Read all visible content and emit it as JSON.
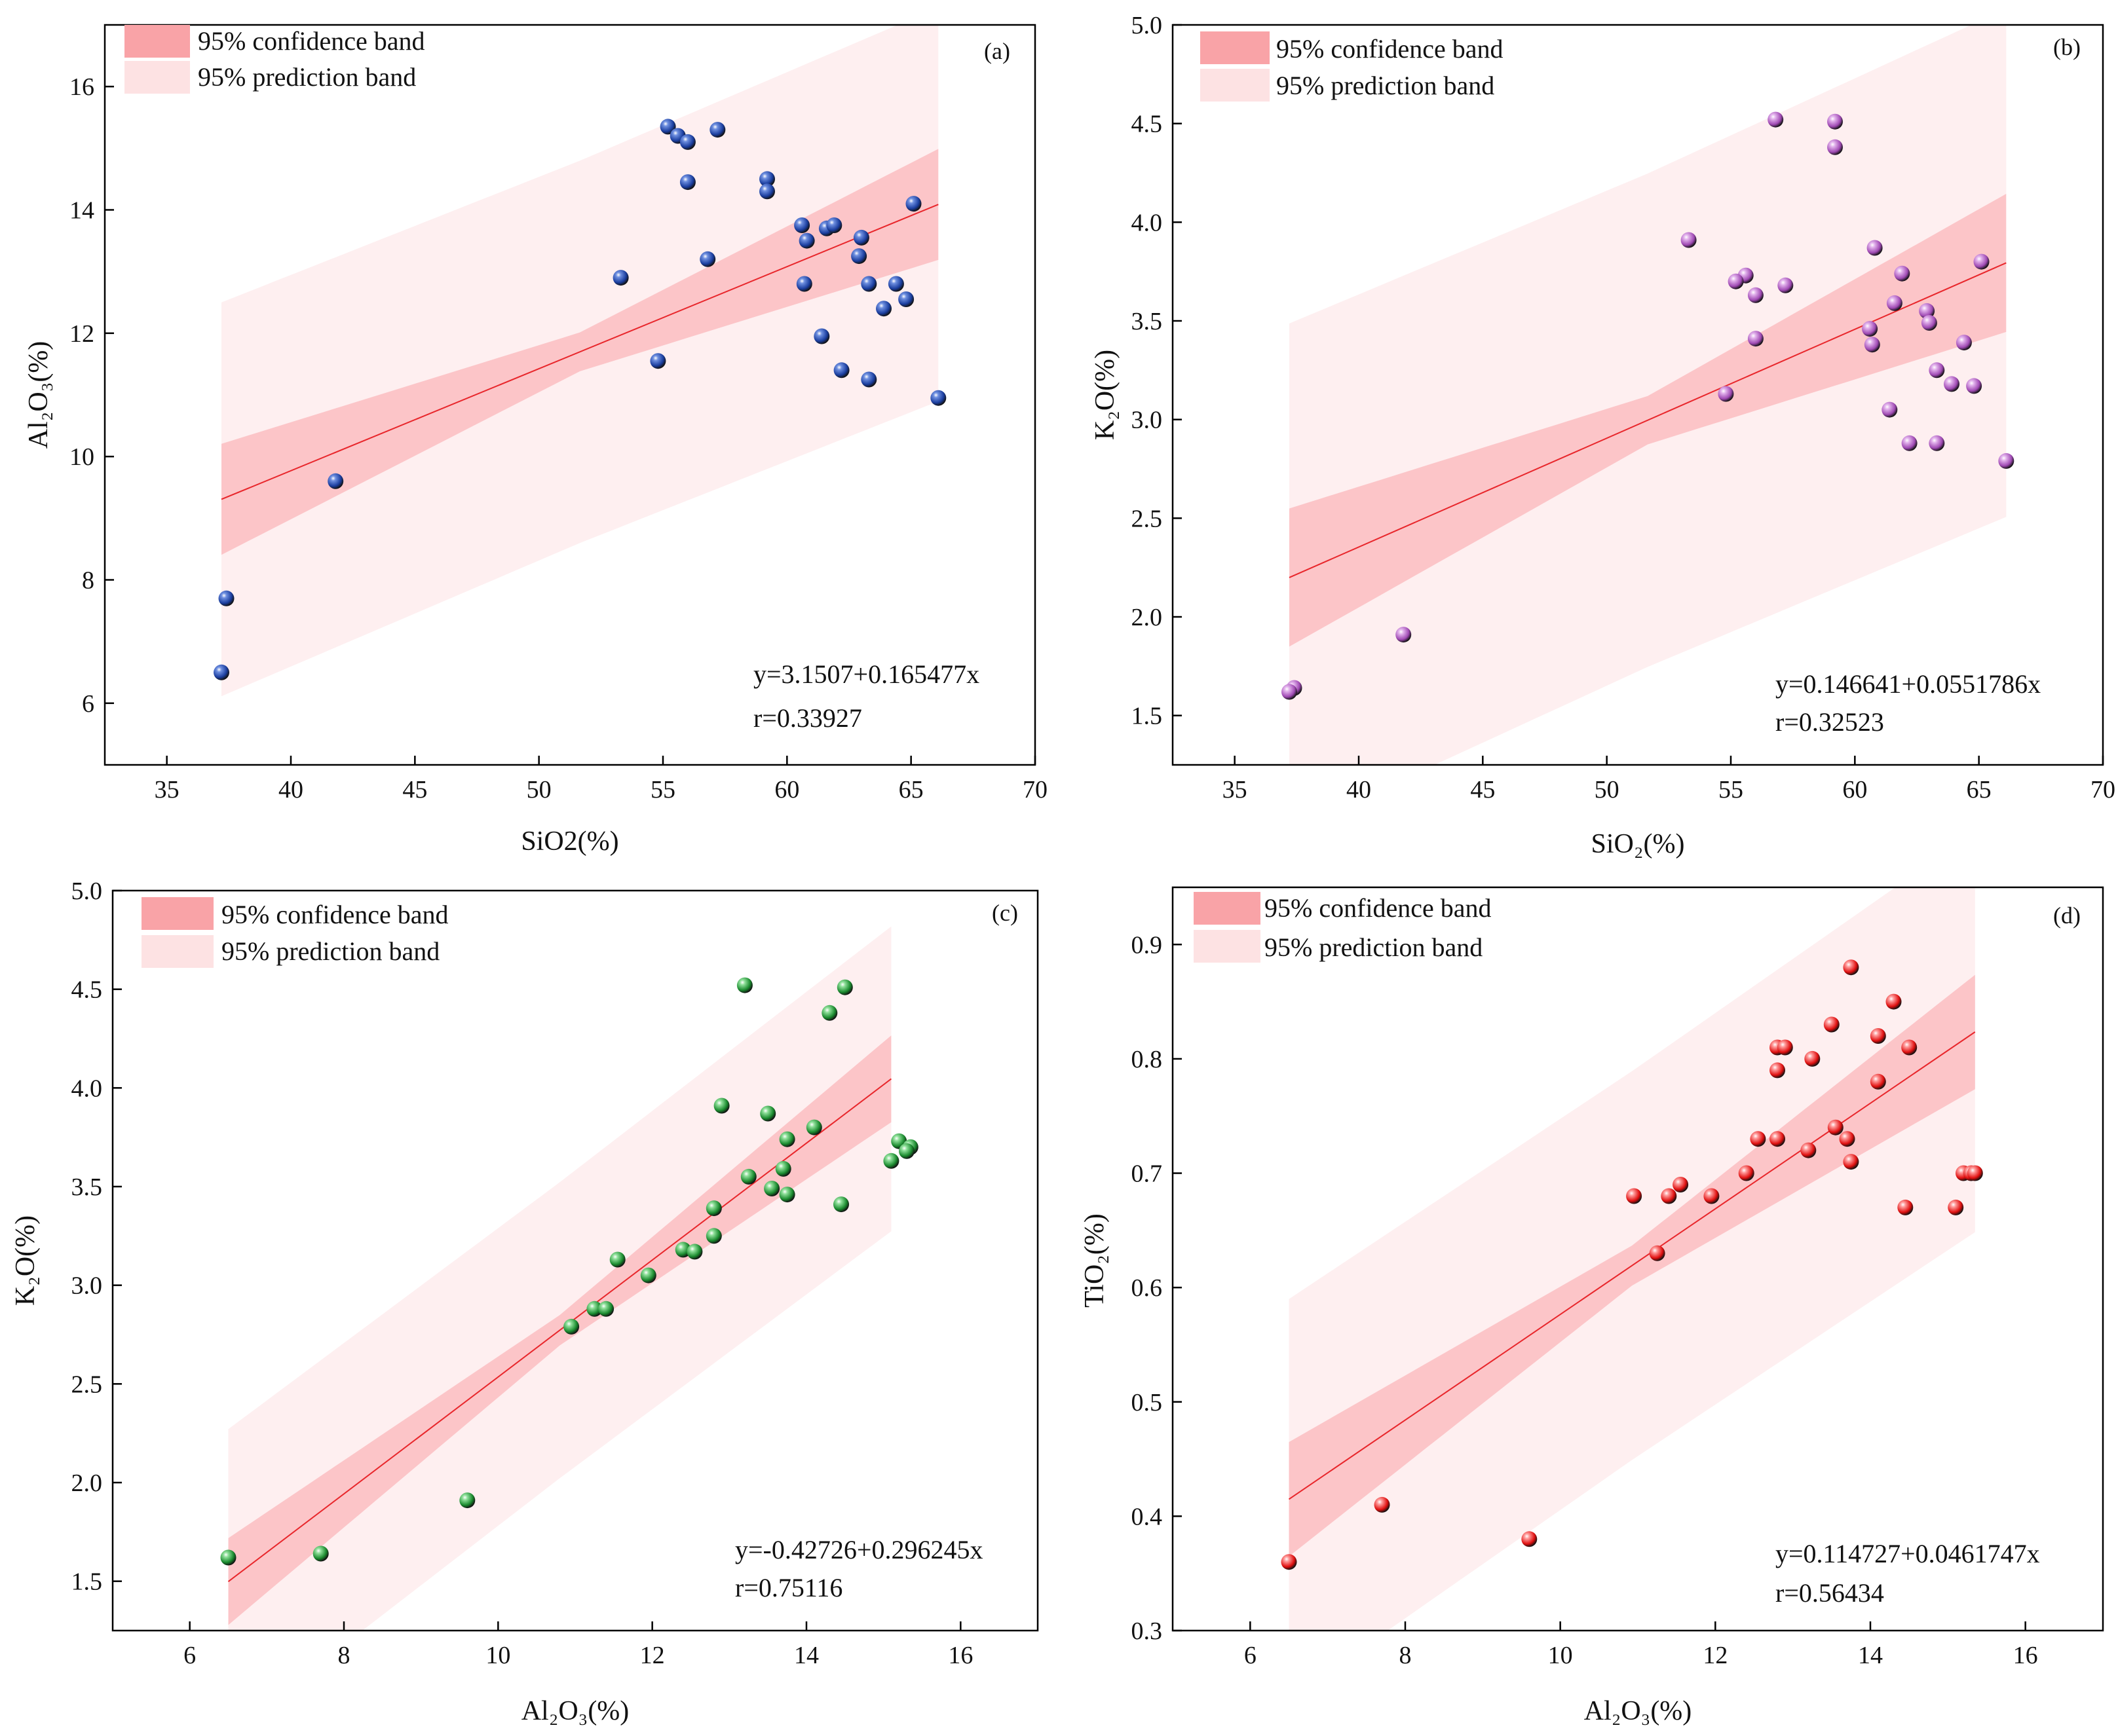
{
  "colors": {
    "confidence": "#f9a3a7",
    "prediction": "#fde2e3",
    "fit": "#e8262b",
    "axis": "#000000"
  },
  "chart_data": [
    {
      "type": "scatter",
      "panel": "(a)",
      "xlabel": "SiO2(%)",
      "ylabel": "Al₂O₃(%)",
      "xlim": [
        32.5,
        70
      ],
      "ylim": [
        5,
        17
      ],
      "xticks": [
        35,
        40,
        45,
        50,
        55,
        60,
        65,
        70
      ],
      "yticks": [
        6,
        8,
        10,
        12,
        14,
        16
      ],
      "ytick_format": "int",
      "x_range": [
        37.2,
        66.1
      ],
      "point_color": "#1a3d9e",
      "point_highlight": "#6e8fe0",
      "legend": [
        "95% confidence band",
        "95% prediction band"
      ],
      "equation": "y=3.1507+0.165477x",
      "r_text": "r=0.33927",
      "intercept": 3.1507,
      "slope": 0.165477,
      "conf_half": 0.9,
      "pred_half": 3.1,
      "points": [
        {
          "x": 55.2,
          "y": 15.35
        },
        {
          "x": 55.6,
          "y": 15.2
        },
        {
          "x": 56.0,
          "y": 15.1
        },
        {
          "x": 57.2,
          "y": 15.3
        },
        {
          "x": 56.0,
          "y": 14.45
        },
        {
          "x": 59.2,
          "y": 14.5
        },
        {
          "x": 59.2,
          "y": 14.3
        },
        {
          "x": 65.1,
          "y": 14.1
        },
        {
          "x": 60.6,
          "y": 13.75
        },
        {
          "x": 61.6,
          "y": 13.7
        },
        {
          "x": 61.9,
          "y": 13.75
        },
        {
          "x": 60.8,
          "y": 13.5
        },
        {
          "x": 63.0,
          "y": 13.55
        },
        {
          "x": 62.9,
          "y": 13.25
        },
        {
          "x": 56.8,
          "y": 13.2
        },
        {
          "x": 53.3,
          "y": 12.9
        },
        {
          "x": 60.7,
          "y": 12.8
        },
        {
          "x": 63.3,
          "y": 12.8
        },
        {
          "x": 64.4,
          "y": 12.8
        },
        {
          "x": 64.8,
          "y": 12.55
        },
        {
          "x": 63.9,
          "y": 12.4
        },
        {
          "x": 61.4,
          "y": 11.95
        },
        {
          "x": 54.8,
          "y": 11.55
        },
        {
          "x": 62.2,
          "y": 11.4
        },
        {
          "x": 63.3,
          "y": 11.25
        },
        {
          "x": 66.1,
          "y": 10.95
        },
        {
          "x": 41.8,
          "y": 9.6
        },
        {
          "x": 37.4,
          "y": 7.7
        },
        {
          "x": 37.2,
          "y": 6.5
        }
      ]
    },
    {
      "type": "scatter",
      "panel": "(b)",
      "xlabel": "SiO₂(%)",
      "ylabel": "K₂O(%)",
      "xlim": [
        32.5,
        70
      ],
      "ylim": [
        1.25,
        5.0
      ],
      "xticks": [
        35,
        40,
        45,
        50,
        55,
        60,
        65,
        70
      ],
      "yticks": [
        1.5,
        2.0,
        2.5,
        3.0,
        3.5,
        4.0,
        4.5,
        5.0
      ],
      "ytick_format": "fixed1",
      "x_range": [
        37.2,
        66.1
      ],
      "point_color": "#a04ab4",
      "point_highlight": "#e2b2ec",
      "legend": [
        "95% confidence band",
        "95% prediction band"
      ],
      "equation": "y=0.146641+0.0551786x",
      "r_text": "r=0.32523",
      "intercept": 0.146641,
      "slope": 0.0551786,
      "conf_half": 0.35,
      "pred_half": 1.25,
      "points": [
        {
          "x": 56.8,
          "y": 4.52
        },
        {
          "x": 59.2,
          "y": 4.51
        },
        {
          "x": 59.2,
          "y": 4.38
        },
        {
          "x": 53.3,
          "y": 3.91
        },
        {
          "x": 60.8,
          "y": 3.87
        },
        {
          "x": 65.1,
          "y": 3.8
        },
        {
          "x": 61.9,
          "y": 3.74
        },
        {
          "x": 55.6,
          "y": 3.73
        },
        {
          "x": 55.2,
          "y": 3.7
        },
        {
          "x": 57.2,
          "y": 3.68
        },
        {
          "x": 56.0,
          "y": 3.63
        },
        {
          "x": 61.6,
          "y": 3.59
        },
        {
          "x": 62.9,
          "y": 3.55
        },
        {
          "x": 63.0,
          "y": 3.49
        },
        {
          "x": 60.6,
          "y": 3.46
        },
        {
          "x": 56.0,
          "y": 3.41
        },
        {
          "x": 60.7,
          "y": 3.38
        },
        {
          "x": 64.4,
          "y": 3.39
        },
        {
          "x": 63.3,
          "y": 3.25
        },
        {
          "x": 63.9,
          "y": 3.18
        },
        {
          "x": 64.8,
          "y": 3.17
        },
        {
          "x": 54.8,
          "y": 3.13
        },
        {
          "x": 61.4,
          "y": 3.05
        },
        {
          "x": 62.2,
          "y": 2.88
        },
        {
          "x": 63.3,
          "y": 2.88
        },
        {
          "x": 66.1,
          "y": 2.79
        },
        {
          "x": 41.8,
          "y": 1.91
        },
        {
          "x": 37.4,
          "y": 1.64
        },
        {
          "x": 37.2,
          "y": 1.62
        }
      ]
    },
    {
      "type": "scatter",
      "panel": "(c)",
      "xlabel": "Al₂O₃(%)",
      "ylabel": "K₂O(%)",
      "xlim": [
        5,
        17
      ],
      "ylim": [
        1.25,
        5.0
      ],
      "xticks": [
        6,
        8,
        10,
        12,
        14,
        16
      ],
      "yticks": [
        1.5,
        2.0,
        2.5,
        3.0,
        3.5,
        4.0,
        4.5,
        5.0
      ],
      "ytick_format": "fixed1",
      "x_range": [
        6.5,
        15.1
      ],
      "point_color": "#1a8a2e",
      "point_highlight": "#8fe09a",
      "legend": [
        "95% confidence band",
        "95% prediction band"
      ],
      "equation": "y=-0.42726+0.296245x",
      "r_text": "r=0.75116",
      "intercept": -0.42726,
      "slope": 0.296245,
      "conf_half": 0.22,
      "pred_half": 0.75,
      "points": [
        {
          "x": 13.2,
          "y": 4.52
        },
        {
          "x": 14.5,
          "y": 4.51
        },
        {
          "x": 14.3,
          "y": 4.38
        },
        {
          "x": 12.9,
          "y": 3.91
        },
        {
          "x": 13.5,
          "y": 3.87
        },
        {
          "x": 14.1,
          "y": 3.8
        },
        {
          "x": 13.75,
          "y": 3.74
        },
        {
          "x": 15.2,
          "y": 3.73
        },
        {
          "x": 15.35,
          "y": 3.7
        },
        {
          "x": 15.3,
          "y": 3.68
        },
        {
          "x": 15.1,
          "y": 3.63
        },
        {
          "x": 13.7,
          "y": 3.59
        },
        {
          "x": 13.25,
          "y": 3.55
        },
        {
          "x": 13.55,
          "y": 3.49
        },
        {
          "x": 13.75,
          "y": 3.46
        },
        {
          "x": 14.45,
          "y": 3.41
        },
        {
          "x": 12.8,
          "y": 3.39
        },
        {
          "x": 12.8,
          "y": 3.25
        },
        {
          "x": 12.4,
          "y": 3.18
        },
        {
          "x": 12.55,
          "y": 3.17
        },
        {
          "x": 11.55,
          "y": 3.13
        },
        {
          "x": 11.95,
          "y": 3.05
        },
        {
          "x": 11.25,
          "y": 2.88
        },
        {
          "x": 11.4,
          "y": 2.88
        },
        {
          "x": 10.95,
          "y": 2.79
        },
        {
          "x": 9.6,
          "y": 1.91
        },
        {
          "x": 7.7,
          "y": 1.64
        },
        {
          "x": 6.5,
          "y": 1.62
        }
      ]
    },
    {
      "type": "scatter",
      "panel": "(d)",
      "xlabel": "Al₂O₃(%)",
      "ylabel": "TiO₂(%)",
      "xlim": [
        5,
        17
      ],
      "ylim": [
        0.3,
        0.95
      ],
      "xticks": [
        6,
        8,
        10,
        12,
        14,
        16
      ],
      "yticks": [
        0.3,
        0.4,
        0.5,
        0.6,
        0.7,
        0.8,
        0.9
      ],
      "ytick_format": "fixed1",
      "x_range": [
        6.5,
        15.35
      ],
      "point_color": "#e01010",
      "point_highlight": "#ff9b9b",
      "legend": [
        "95% confidence band",
        "95% prediction band"
      ],
      "equation": "y=0.114727+0.0461747x",
      "r_text": "r=0.56434",
      "intercept": 0.114727,
      "slope": 0.0461747,
      "conf_half": 0.05,
      "pred_half": 0.17,
      "points": [
        {
          "x": 13.75,
          "y": 0.88
        },
        {
          "x": 14.3,
          "y": 0.85
        },
        {
          "x": 13.5,
          "y": 0.83
        },
        {
          "x": 14.1,
          "y": 0.82
        },
        {
          "x": 12.8,
          "y": 0.81
        },
        {
          "x": 12.9,
          "y": 0.81
        },
        {
          "x": 14.5,
          "y": 0.81
        },
        {
          "x": 13.25,
          "y": 0.8
        },
        {
          "x": 12.8,
          "y": 0.79
        },
        {
          "x": 14.1,
          "y": 0.78
        },
        {
          "x": 13.55,
          "y": 0.74
        },
        {
          "x": 12.55,
          "y": 0.73
        },
        {
          "x": 12.8,
          "y": 0.73
        },
        {
          "x": 13.7,
          "y": 0.73
        },
        {
          "x": 13.2,
          "y": 0.72
        },
        {
          "x": 13.75,
          "y": 0.71
        },
        {
          "x": 12.4,
          "y": 0.7
        },
        {
          "x": 15.2,
          "y": 0.7
        },
        {
          "x": 15.3,
          "y": 0.7
        },
        {
          "x": 15.35,
          "y": 0.7
        },
        {
          "x": 11.55,
          "y": 0.69
        },
        {
          "x": 10.95,
          "y": 0.68
        },
        {
          "x": 11.4,
          "y": 0.68
        },
        {
          "x": 11.95,
          "y": 0.68
        },
        {
          "x": 14.45,
          "y": 0.67
        },
        {
          "x": 15.1,
          "y": 0.67
        },
        {
          "x": 11.25,
          "y": 0.63
        },
        {
          "x": 7.7,
          "y": 0.41
        },
        {
          "x": 9.6,
          "y": 0.38
        },
        {
          "x": 6.5,
          "y": 0.36
        }
      ]
    }
  ]
}
